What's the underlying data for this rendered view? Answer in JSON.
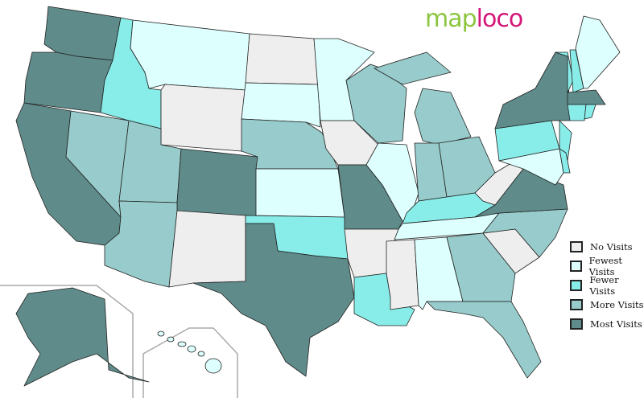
{
  "logo": {
    "part1": "map",
    "part2": "loco"
  },
  "categories": {
    "none": {
      "label": "No Visits",
      "color": "#eeeeee"
    },
    "fewest": {
      "label": "Fewest Visits",
      "color": "#ddfffe"
    },
    "fewer": {
      "label": "Fewer Visits",
      "color": "#88ece8"
    },
    "more": {
      "label": "More Visits",
      "color": "#98cbcb"
    },
    "most": {
      "label": "Most Visits",
      "color": "#5f8b8a"
    }
  },
  "legend_order": [
    "none",
    "fewest",
    "fewer",
    "more",
    "most"
  ],
  "states": {
    "WA": "most",
    "OR": "most",
    "CA": "most",
    "NV": "more",
    "ID": "fewer",
    "MT": "fewest",
    "WY": "none",
    "UT": "more",
    "CO": "most",
    "AZ": "more",
    "NM": "none",
    "ND": "none",
    "SD": "fewest",
    "NE": "more",
    "KS": "fewest",
    "OK": "fewer",
    "TX": "most",
    "MN": "fewest",
    "IA": "none",
    "MO": "most",
    "AR": "none",
    "LA": "fewer",
    "WI": "more",
    "IL": "fewest",
    "MI": "more",
    "IN": "more",
    "OH": "more",
    "KY": "fewer",
    "TN": "fewest",
    "MS": "none",
    "AL": "fewest",
    "GA": "more",
    "FL": "more",
    "SC": "none",
    "NC": "more",
    "VA": "most",
    "WV": "none",
    "PA": "fewer",
    "NY": "most",
    "NJ": "fewer",
    "MD": "fewest",
    "DE": "fewer",
    "VT": "fewer",
    "NH": "fewer",
    "ME": "fewest",
    "MA": "most",
    "CT": "fewer",
    "RI": "fewer",
    "AK": "most",
    "HI": "fewest"
  }
}
